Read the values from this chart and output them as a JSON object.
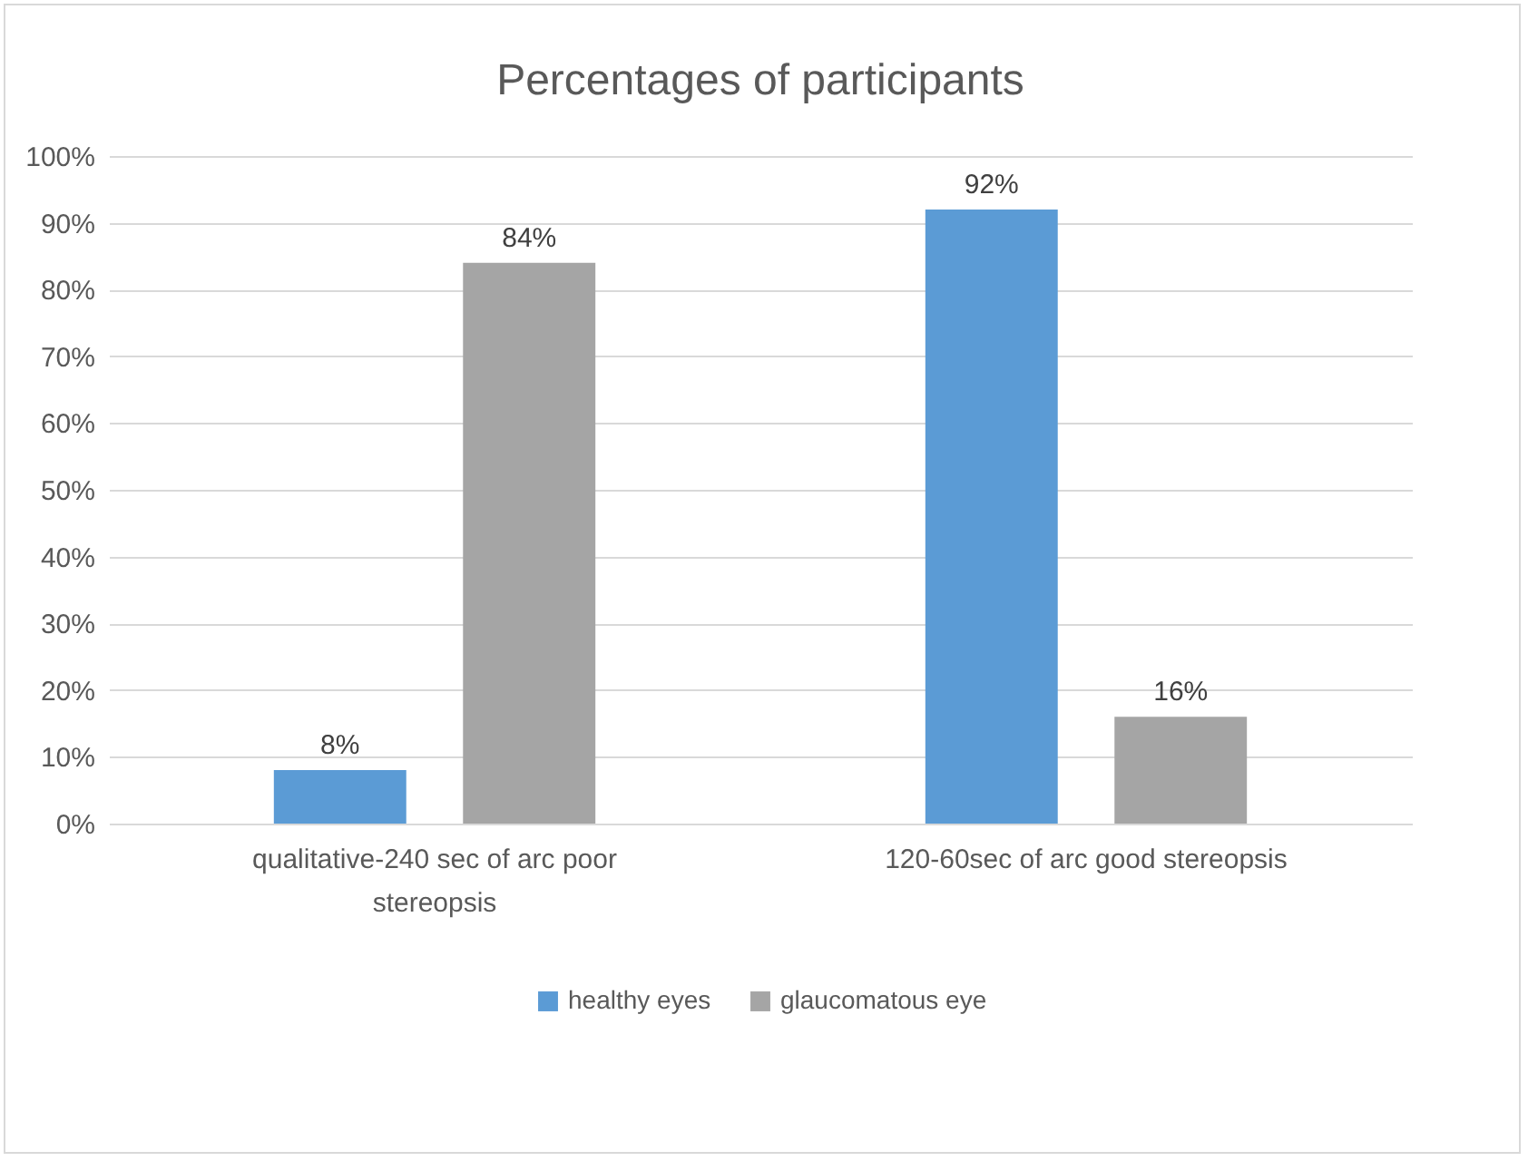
{
  "chart_data": {
    "type": "bar",
    "title": "Percentages of participants",
    "categories": [
      "qualitative-240 sec of arc poor stereopsis",
      "120-60sec of arc good stereopsis"
    ],
    "series": [
      {
        "name": "healthy eyes",
        "color": "#5b9bd5",
        "values": [
          8,
          92
        ],
        "value_labels": [
          "8%",
          "92%"
        ]
      },
      {
        "name": "glaucomatous eye",
        "color": "#a5a5a5",
        "values": [
          84,
          16
        ],
        "value_labels": [
          "84%",
          "16%"
        ]
      }
    ],
    "ylim": [
      0,
      100
    ],
    "yticks": [
      {
        "value": 0,
        "label": "0%"
      },
      {
        "value": 10,
        "label": "10%"
      },
      {
        "value": 20,
        "label": "20%"
      },
      {
        "value": 30,
        "label": "30%"
      },
      {
        "value": 40,
        "label": "40%"
      },
      {
        "value": 50,
        "label": "50%"
      },
      {
        "value": 60,
        "label": "60%"
      },
      {
        "value": 70,
        "label": "70%"
      },
      {
        "value": 80,
        "label": "80%"
      },
      {
        "value": 90,
        "label": "90%"
      },
      {
        "value": 100,
        "label": "100%"
      }
    ],
    "grid": "y",
    "legend": "bottom"
  }
}
